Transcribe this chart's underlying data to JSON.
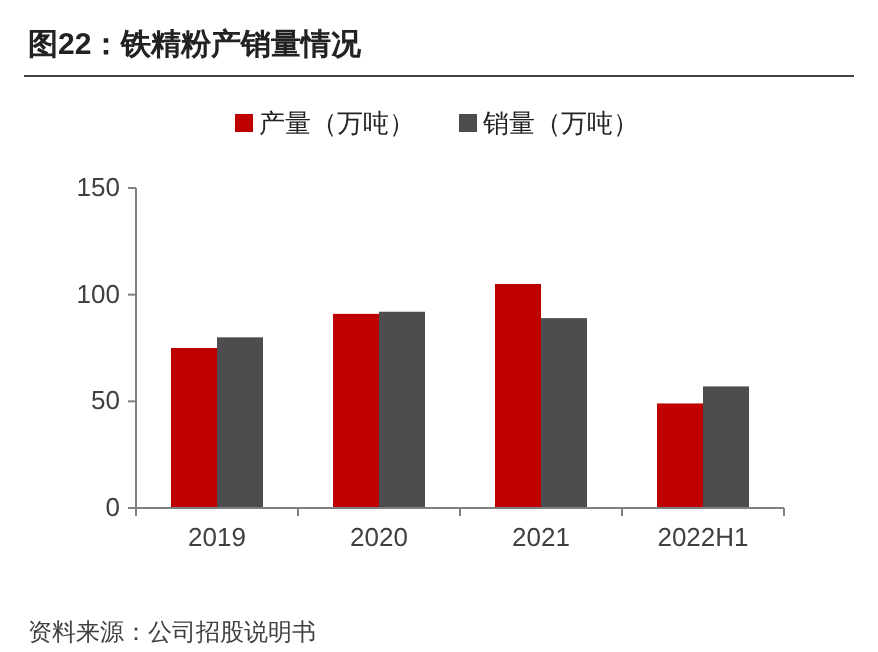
{
  "chart_data": {
    "type": "bar",
    "title": "图22：铁精粉产销量情况",
    "categories": [
      "2019",
      "2020",
      "2021",
      "2022H1"
    ],
    "series": [
      {
        "name": "产量（万吨）",
        "color": "#c00000",
        "values": [
          75,
          91,
          105,
          49
        ]
      },
      {
        "name": "销量（万吨）",
        "color": "#4d4d4f",
        "values": [
          80,
          92,
          89,
          57
        ]
      }
    ],
    "ylim": [
      0,
      150
    ],
    "yticks": [
      0,
      50,
      100,
      150
    ],
    "grid": false,
    "legend": "top",
    "annotations": [
      "资料来源：公司招股说明书"
    ]
  }
}
